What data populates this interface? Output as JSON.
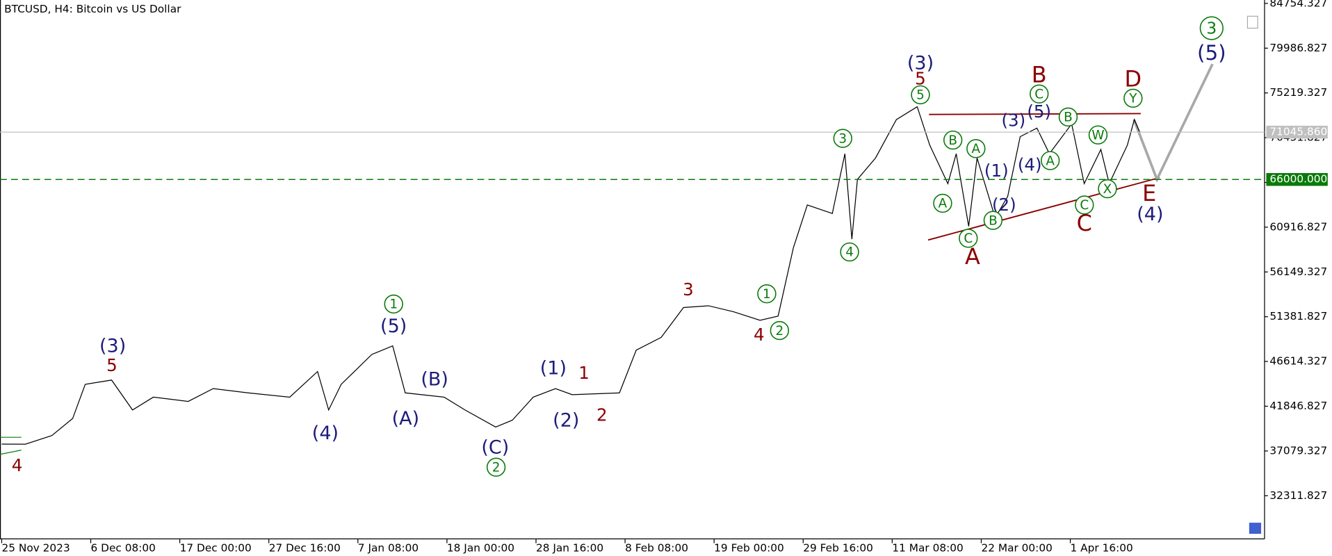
{
  "chart_data": {
    "type": "line",
    "title": "BTCUSD, H4:  Bitcoin vs US Dollar",
    "color": "#000000",
    "x": [
      0,
      17,
      36,
      51,
      60,
      79,
      94,
      109,
      134,
      152,
      177,
      207,
      227,
      235,
      244,
      266,
      281,
      290,
      318,
      333,
      355,
      367,
      382,
      398,
      410,
      444,
      456,
      474,
      490,
      508,
      526,
      545,
      558,
      569,
      579,
      597,
      606,
      611,
      615,
      628,
      643,
      658,
      667,
      680,
      686,
      695,
      701,
      714,
      723,
      732,
      744,
      753,
      769,
      778,
      790,
      796,
      809,
      814,
      818
    ],
    "values": [
      37810,
      37800,
      38720,
      40540,
      44180,
      44630,
      41450,
      42810,
      42360,
      43720,
      43270,
      42810,
      45540,
      41450,
      44180,
      47360,
      48270,
      43270,
      42810,
      41450,
      39630,
      40360,
      42810,
      43720,
      43080,
      43270,
      47820,
      49180,
      52360,
      52550,
      51910,
      51000,
      51450,
      58730,
      63280,
      62370,
      68740,
      59640,
      66010,
      68290,
      72380,
      73750,
      69650,
      65560,
      68740,
      61010,
      68290,
      61920,
      64190,
      70560,
      71470,
      68740,
      71920,
      65560,
      69200,
      65560,
      69650,
      72380,
      71010
    ],
    "xlim": [
      0,
      907
    ],
    "ylim": [
      27710,
      85118
    ],
    "xticks": [
      {
        "value": 0,
        "label": "25 Nov 2023"
      },
      {
        "value": 64,
        "label": "6 Dec 08:00"
      },
      {
        "value": 128,
        "label": "17 Dec 00:00"
      },
      {
        "value": 192,
        "label": "27 Dec 16:00"
      },
      {
        "value": 256,
        "label": "7 Jan 08:00"
      },
      {
        "value": 320,
        "label": "18 Jan 00:00"
      },
      {
        "value": 384,
        "label": "28 Jan 16:00"
      },
      {
        "value": 448,
        "label": "8 Feb 08:00"
      },
      {
        "value": 512,
        "label": "19 Feb 00:00"
      },
      {
        "value": 576,
        "label": "29 Feb 16:00"
      },
      {
        "value": 640,
        "label": "11 Mar 08:00"
      },
      {
        "value": 704,
        "label": "22 Mar 00:00"
      },
      {
        "value": 768,
        "label": "1 Apr 16:00"
      }
    ],
    "yticks": [
      84754.327,
      79986.827,
      75219.327,
      70451.827,
      65684.327,
      60916.827,
      56149.327,
      51381.827,
      46614.327,
      41846.827,
      37079.327,
      32311.827
    ],
    "price_line": {
      "value": 71045.86,
      "label": "71045.860",
      "color": "#c0c0c0"
    },
    "level": {
      "value": 66000,
      "label": "66000.000",
      "color": "#0a7a0a"
    },
    "annotations": [
      {
        "text": "4",
        "color": "#8b0000",
        "circled": false
      },
      {
        "text": "(3)",
        "color": "#1c1c7c",
        "circled": false
      },
      {
        "text": "5",
        "color": "#8b0000",
        "circled": false
      },
      {
        "text": "(4)",
        "color": "#1c1c7c",
        "circled": false
      },
      {
        "text": "1",
        "color": "#0a7a0a",
        "circled": true
      },
      {
        "text": "(5)",
        "color": "#1c1c7c",
        "circled": false
      },
      {
        "text": "(A)",
        "color": "#1c1c7c",
        "circled": false
      },
      {
        "text": "(B)",
        "color": "#1c1c7c",
        "circled": false
      },
      {
        "text": "(C)",
        "color": "#1c1c7c",
        "circled": false
      },
      {
        "text": "2",
        "color": "#0a7a0a",
        "circled": true
      },
      {
        "text": "(1)",
        "color": "#1c1c7c",
        "circled": false
      },
      {
        "text": "1",
        "color": "#8b0000",
        "circled": false
      },
      {
        "text": "(2)",
        "color": "#1c1c7c",
        "circled": false
      },
      {
        "text": "2",
        "color": "#8b0000",
        "circled": false
      },
      {
        "text": "3",
        "color": "#8b0000",
        "circled": false
      },
      {
        "text": "1",
        "color": "#0a7a0a",
        "circled": true
      },
      {
        "text": "4",
        "color": "#8b0000",
        "circled": false
      },
      {
        "text": "2",
        "color": "#0a7a0a",
        "circled": true
      },
      {
        "text": "3",
        "color": "#0a7a0a",
        "circled": true
      },
      {
        "text": "4",
        "color": "#0a7a0a",
        "circled": true
      },
      {
        "text": "(3)",
        "color": "#1c1c7c",
        "circled": false
      },
      {
        "text": "5",
        "color": "#8b0000",
        "circled": false
      },
      {
        "text": "5",
        "color": "#0a7a0a",
        "circled": true
      },
      {
        "text": "B",
        "color": "#0a7a0a",
        "circled": true
      },
      {
        "text": "A",
        "color": "#0a7a0a",
        "circled": true
      },
      {
        "text": "A",
        "color": "#0a7a0a",
        "circled": true
      },
      {
        "text": "C",
        "color": "#0a7a0a",
        "circled": true
      },
      {
        "text": "A",
        "color": "#8b0000",
        "circled": false
      },
      {
        "text": "(1)",
        "color": "#1c1c7c",
        "circled": false
      },
      {
        "text": "(2)",
        "color": "#1c1c7c",
        "circled": false
      },
      {
        "text": "B",
        "color": "#0a7a0a",
        "circled": true
      },
      {
        "text": "(3)",
        "color": "#1c1c7c",
        "circled": false
      },
      {
        "text": "(5)",
        "color": "#1c1c7c",
        "circled": false
      },
      {
        "text": "C",
        "color": "#0a7a0a",
        "circled": true
      },
      {
        "text": "B",
        "color": "#8b0000",
        "circled": false
      },
      {
        "text": "(4)",
        "color": "#1c1c7c",
        "circled": false
      },
      {
        "text": "A",
        "color": "#0a7a0a",
        "circled": true
      },
      {
        "text": "B",
        "color": "#0a7a0a",
        "circled": true
      },
      {
        "text": "W",
        "color": "#0a7a0a",
        "circled": true
      },
      {
        "text": "C",
        "color": "#0a7a0a",
        "circled": true
      },
      {
        "text": "C",
        "color": "#8b0000",
        "circled": false
      },
      {
        "text": "X",
        "color": "#0a7a0a",
        "circled": true
      },
      {
        "text": "Y",
        "color": "#0a7a0a",
        "circled": true
      },
      {
        "text": "D",
        "color": "#8b0000",
        "circled": false
      },
      {
        "text": "E",
        "color": "#8b0000",
        "circled": false
      },
      {
        "text": "(4)",
        "color": "#1c1c7c",
        "circled": false
      },
      {
        "text": "3",
        "color": "#0a7a0a",
        "circled": true
      },
      {
        "text": "(5)",
        "color": "#1c1c7c",
        "circled": false
      }
    ]
  }
}
